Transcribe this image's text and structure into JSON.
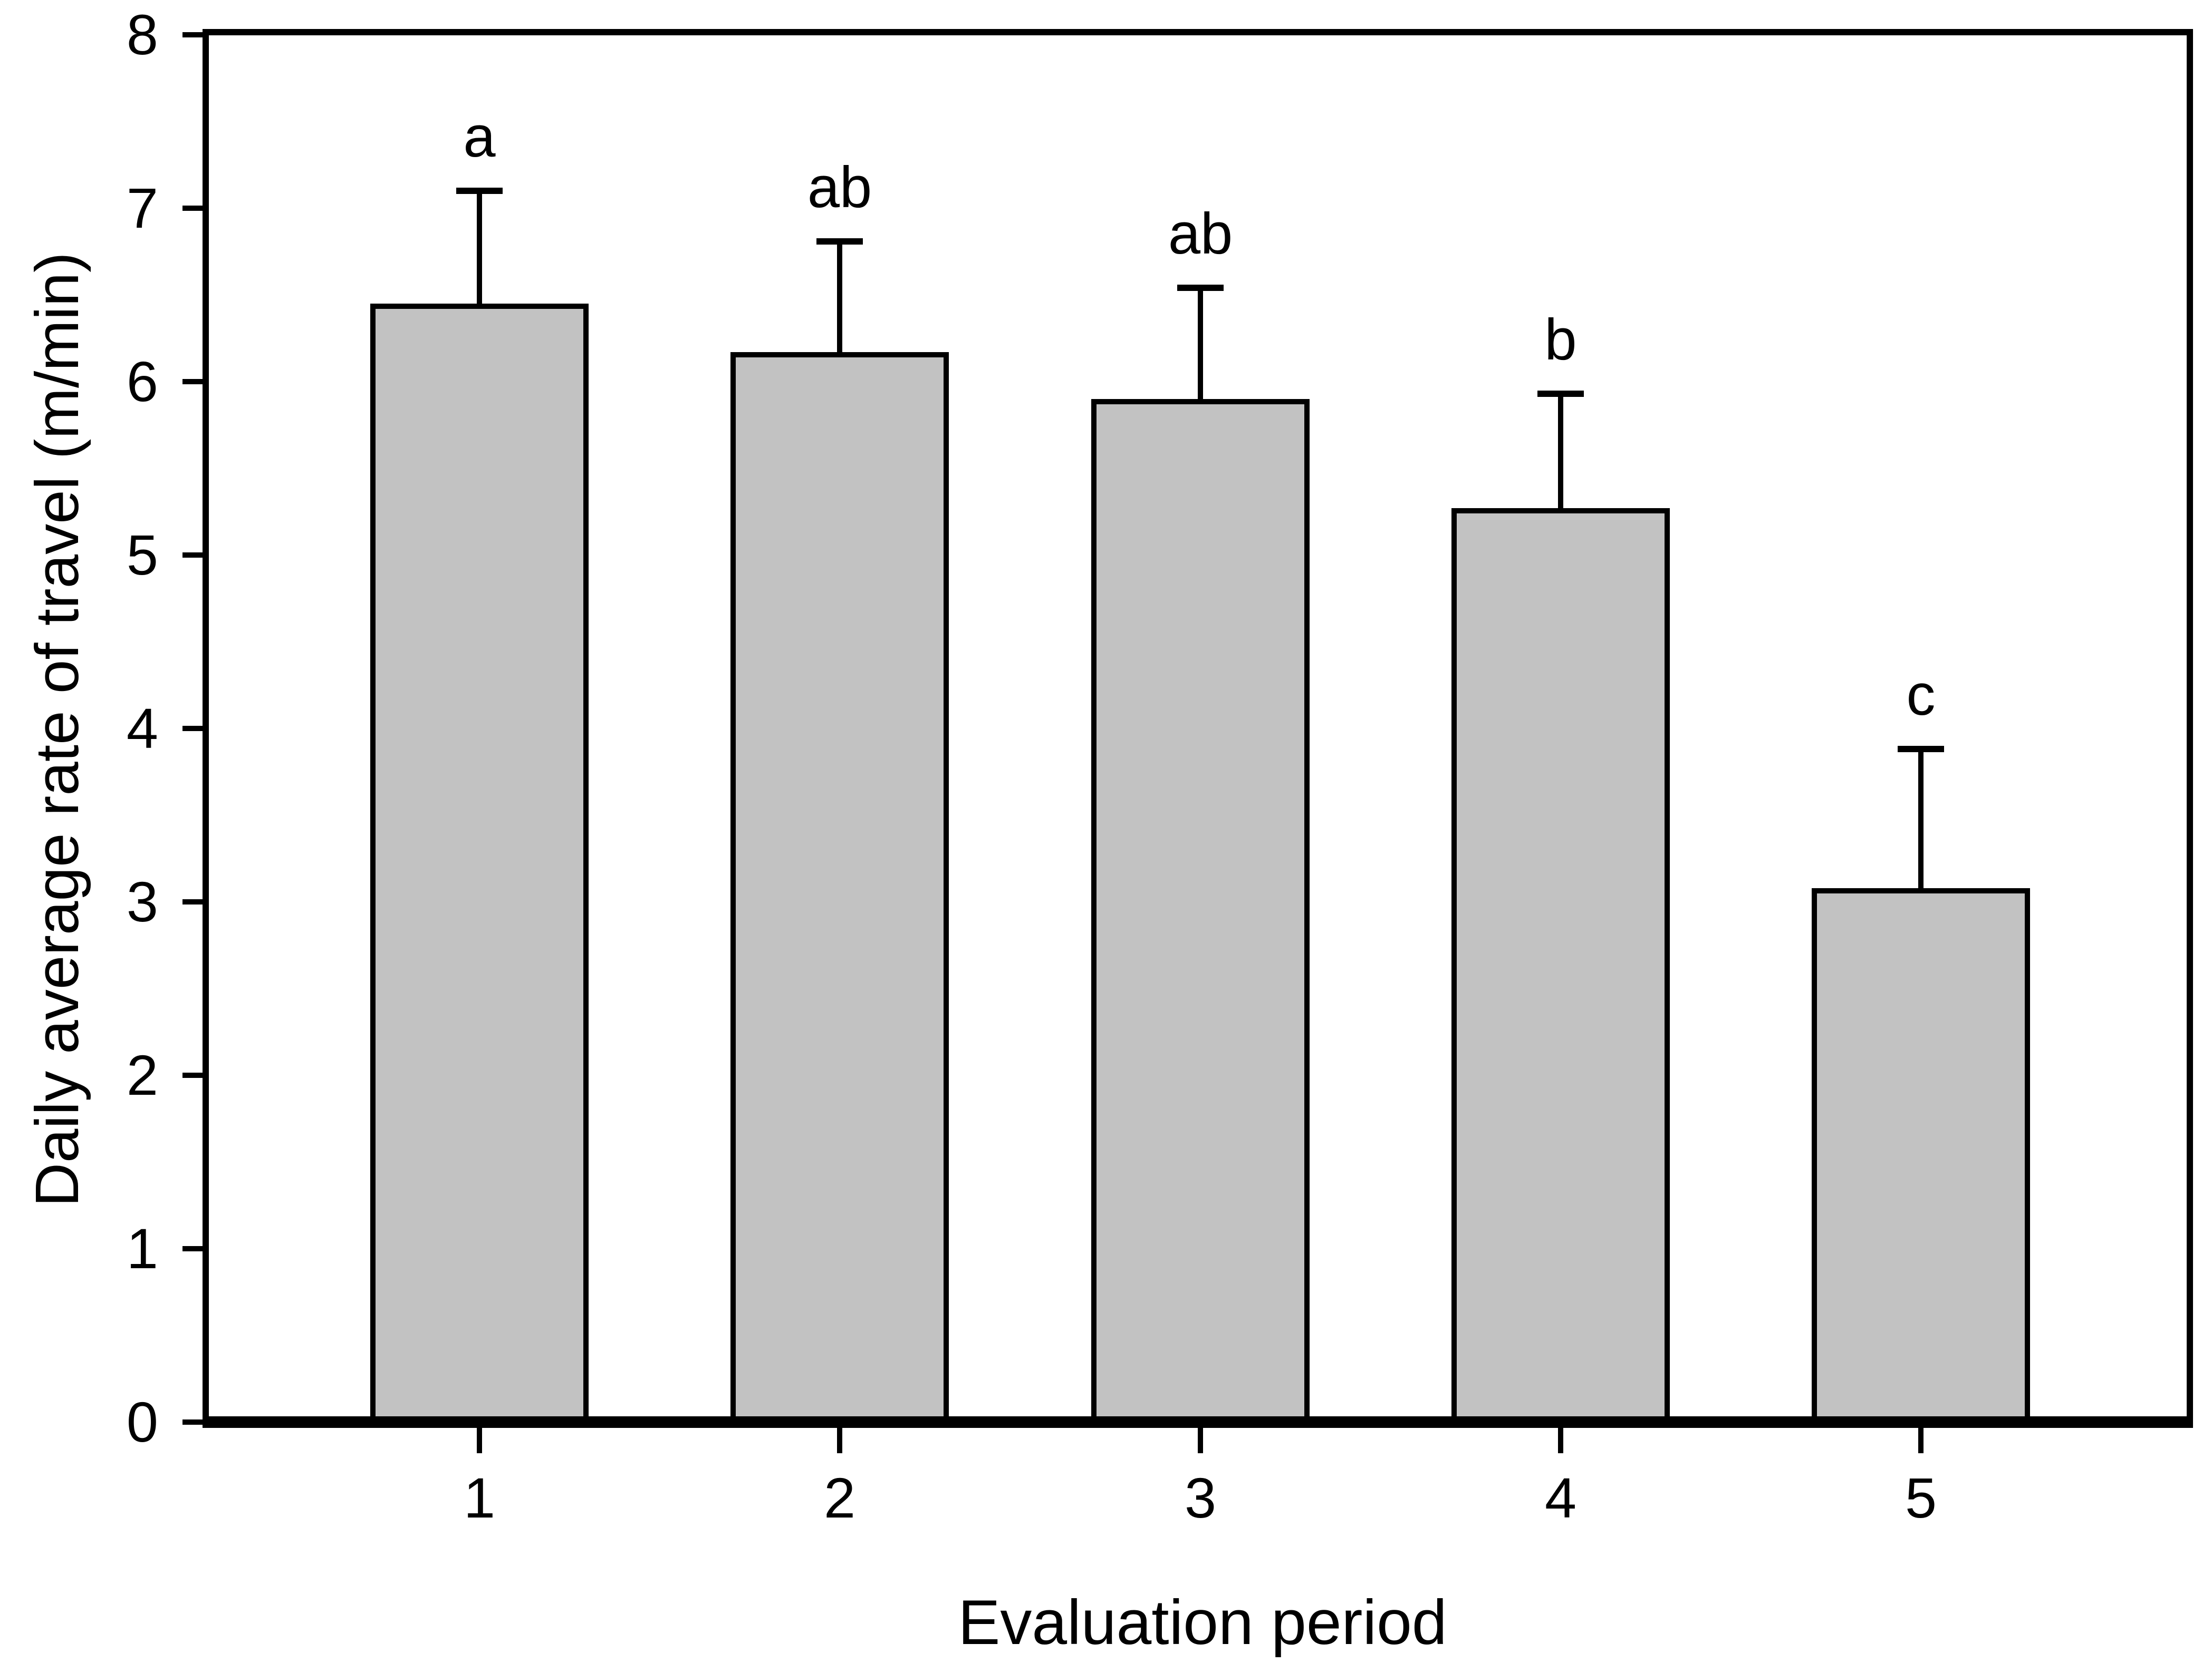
{
  "chart_data": {
    "type": "bar",
    "title": "",
    "xlabel": "Evaluation period",
    "ylabel": "Daily average rate of travel (m/min)",
    "categories": [
      "1",
      "2",
      "3",
      "4",
      "5"
    ],
    "values": [
      6.45,
      6.17,
      5.9,
      5.27,
      3.08
    ],
    "error_plus": [
      0.65,
      0.64,
      0.64,
      0.66,
      0.8
    ],
    "sig_letters": [
      "a",
      "ab",
      "ab",
      "b",
      "c"
    ],
    "series_name": "Daily average rate of travel",
    "ylim": [
      0,
      8
    ],
    "yticks": [
      "0",
      "1",
      "2",
      "3",
      "4",
      "5",
      "6",
      "7",
      "8"
    ],
    "xlim_categories": [
      0.25,
      5.75
    ],
    "grid": "off",
    "legend": "none",
    "colors": {
      "bar_fill": "#c2c2c2",
      "bar_border": "#000000",
      "axis": "#000000",
      "text": "#000000",
      "background": "#ffffff"
    }
  }
}
